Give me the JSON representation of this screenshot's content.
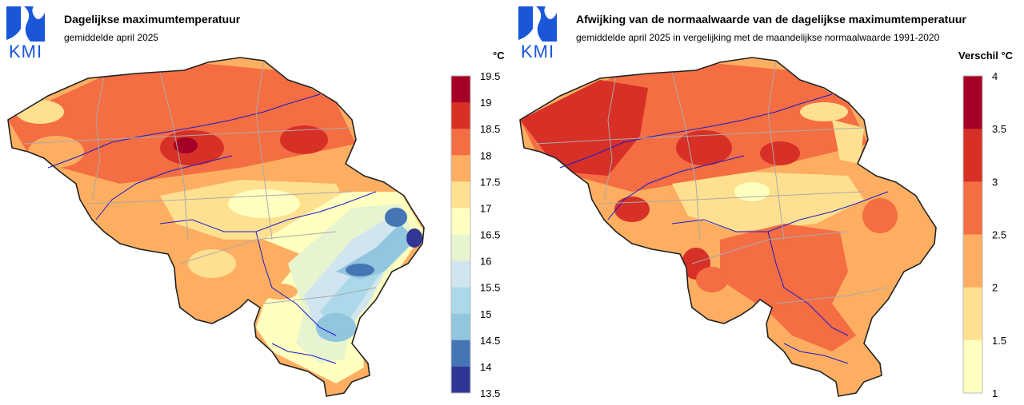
{
  "brand": {
    "logo_text": "KMI",
    "logo_color": "#1a56d8"
  },
  "left": {
    "title": "Dagelijkse maximumtemperatuur",
    "subtitle": "gemiddelde april 2025",
    "unit": "°C",
    "legend": {
      "ticks": [
        "19.5",
        "19",
        "18.5",
        "18",
        "17.5",
        "17",
        "16.5",
        "16",
        "15.5",
        "15",
        "14.5",
        "14",
        "13.5"
      ],
      "colors": [
        "#a50026",
        "#d73027",
        "#f46d43",
        "#fdae61",
        "#fee090",
        "#ffffbf",
        "#e6f5d0",
        "#d1e5f0",
        "#abd9e9",
        "#92c5de",
        "#4575b4",
        "#313695"
      ]
    }
  },
  "right": {
    "title": "Afwijking van de normaalwaarde van de dagelijkse maximumtemperatuur",
    "subtitle": "gemiddelde april 2025 in vergelijking met de maandelijkse normaalwaarde 1991-2020",
    "unit": "Verschil °C",
    "legend": {
      "ticks": [
        "4",
        "3.5",
        "3",
        "2.5",
        "2",
        "1.5",
        "1"
      ],
      "colors": [
        "#a50026",
        "#d73027",
        "#f46d43",
        "#fdae61",
        "#fee090",
        "#ffffbf"
      ]
    }
  }
}
